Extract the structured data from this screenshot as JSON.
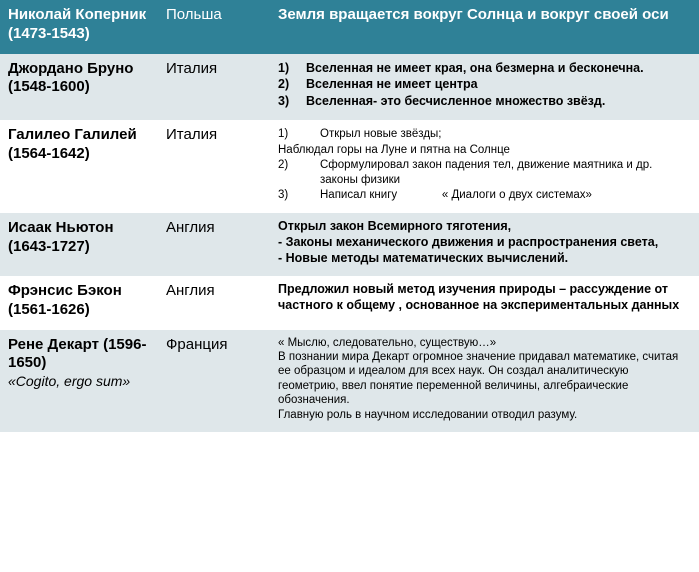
{
  "scientists": [
    {
      "rowClass": "row-header",
      "name": "Николай Коперник (1473-1543)",
      "nameSub": "",
      "country": "Польша",
      "achievStyle": "header",
      "achievements": [
        {
          "type": "plain",
          "text": "Земля вращается вокруг Солнца и вокруг своей оси"
        }
      ]
    },
    {
      "rowClass": "row-alt",
      "name": "Джордано Бруно (1548-1600)",
      "nameSub": "",
      "country": "Италия",
      "achievStyle": "bold",
      "achievements": [
        {
          "type": "num",
          "n": "1)",
          "text": "Вселенная не имеет края, она безмерна и бесконечна."
        },
        {
          "type": "num",
          "n": "2)",
          "text": "Вселенная не имеет центра"
        },
        {
          "type": "num",
          "n": "3)",
          "text": "Вселенная- это бесчисленное множество звёзд."
        }
      ]
    },
    {
      "rowClass": "row-plain",
      "name": "Галилео Галилей (1564-1642)",
      "nameSub": "",
      "country": "Италия",
      "achievStyle": "small",
      "achievements": [
        {
          "type": "num",
          "n": "1)",
          "text": "Открыл новые звёзды;",
          "indent": true
        },
        {
          "type": "plain",
          "text": "Наблюдал горы на Луне и пятна на Солнце"
        },
        {
          "type": "num",
          "n": "2)",
          "text": "Сформулировал закон падения тел, движение маятника и др. законы физики",
          "indent": true
        },
        {
          "type": "num",
          "n": "3)",
          "text": "Написал книгу              « Диалоги о двух системах»",
          "indent": true
        }
      ]
    },
    {
      "rowClass": "row-alt",
      "name": "Исаак Ньютон (1643-1727)",
      "nameSub": "",
      "country": "Англия",
      "achievStyle": "bold",
      "achievements": [
        {
          "type": "plain",
          "text": "Открыл закон Всемирного тяготения,"
        },
        {
          "type": "plain",
          "text": "- Законы механического движения и распространения света,"
        },
        {
          "type": "plain",
          "text": "- Новые методы математических вычислений."
        }
      ]
    },
    {
      "rowClass": "row-plain",
      "name": "Фрэнсис Бэкон\n (1561-1626)",
      "nameSub": "",
      "country": "Англия",
      "achievStyle": "bold",
      "achievements": [
        {
          "type": "plain",
          "text": "Предложил новый метод изучения природы – рассуждение от частного к общему , основанное на экспериментальных данных"
        }
      ]
    },
    {
      "rowClass": "row-alt",
      "name": "Рене Декарт (1596-1650)",
      "nameSub": "«Cogito, ergo sum»",
      "country": "Франция",
      "achievStyle": "small",
      "achievements": [
        {
          "type": "plain",
          "text": "« Мыслю, следовательно,  существую…»"
        },
        {
          "type": "plain",
          "text": "В познании мира Декарт огромное значение придавал математике, считая ее образцом и идеалом для всех наук. Он создал аналитическую геометрию, ввел понятие переменной величины, алгебраические обозначения."
        },
        {
          "type": "plain",
          "text": "Главную роль в научном исследовании отводил разуму."
        }
      ]
    }
  ]
}
